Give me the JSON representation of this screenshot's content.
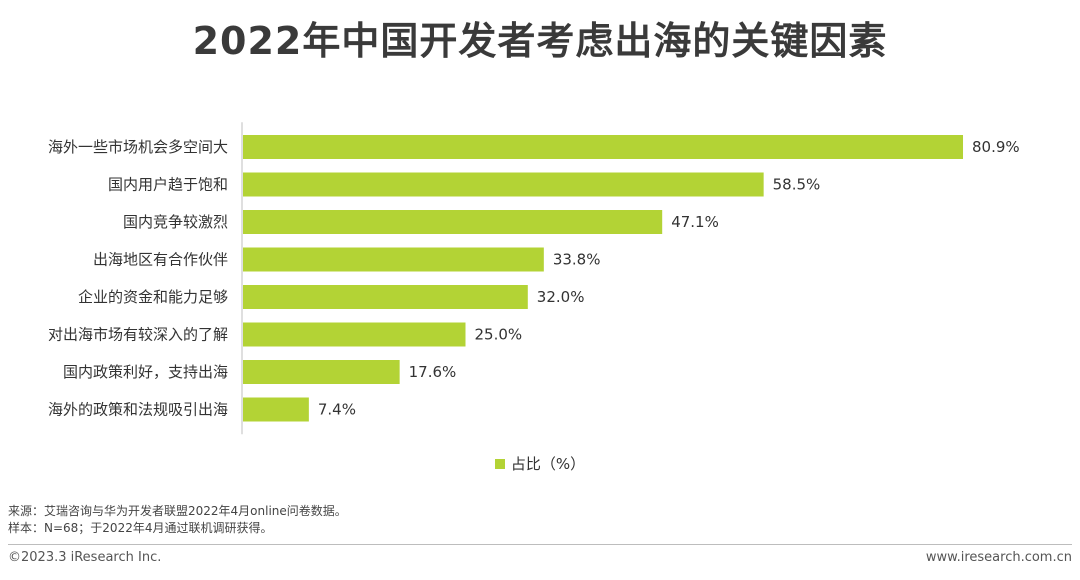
{
  "title": "2022年中国开发者考虑出海的关键因素",
  "chart_data": {
    "type": "bar",
    "orientation": "horizontal",
    "categories": [
      "海外一些市场机会多空间大",
      "国内用户趋于饱和",
      "国内竞争较激烈",
      "出海地区有合作伙伴",
      "企业的资金和能力足够",
      "对出海市场有较深入的了解",
      "国内政策利好，支持出海",
      "海外的政策和法规吸引出海"
    ],
    "values": [
      80.9,
      58.5,
      47.1,
      33.8,
      32.0,
      25.0,
      17.6,
      7.4
    ],
    "value_labels": [
      "80.9%",
      "58.5%",
      "47.1%",
      "33.8%",
      "32.0%",
      "25.0%",
      "17.6%",
      "7.4%"
    ],
    "series": [
      {
        "name": "占比（%）",
        "values": [
          80.9,
          58.5,
          47.1,
          33.8,
          32.0,
          25.0,
          17.6,
          7.4
        ]
      }
    ],
    "xlim": [
      0,
      100
    ],
    "grid": false,
    "legend_position": "bottom",
    "bar_color": "#b3d335"
  },
  "legend": {
    "label": "占比（%）"
  },
  "footnotes": {
    "source": "来源：艾瑞咨询与华为开发者联盟2022年4月online问卷数据。",
    "sample": "样本：N=68；于2022年4月通过联机调研获得。"
  },
  "footer": {
    "copyright": "©2023.3 iResearch Inc.",
    "website": "www.iresearch.com.cn"
  }
}
